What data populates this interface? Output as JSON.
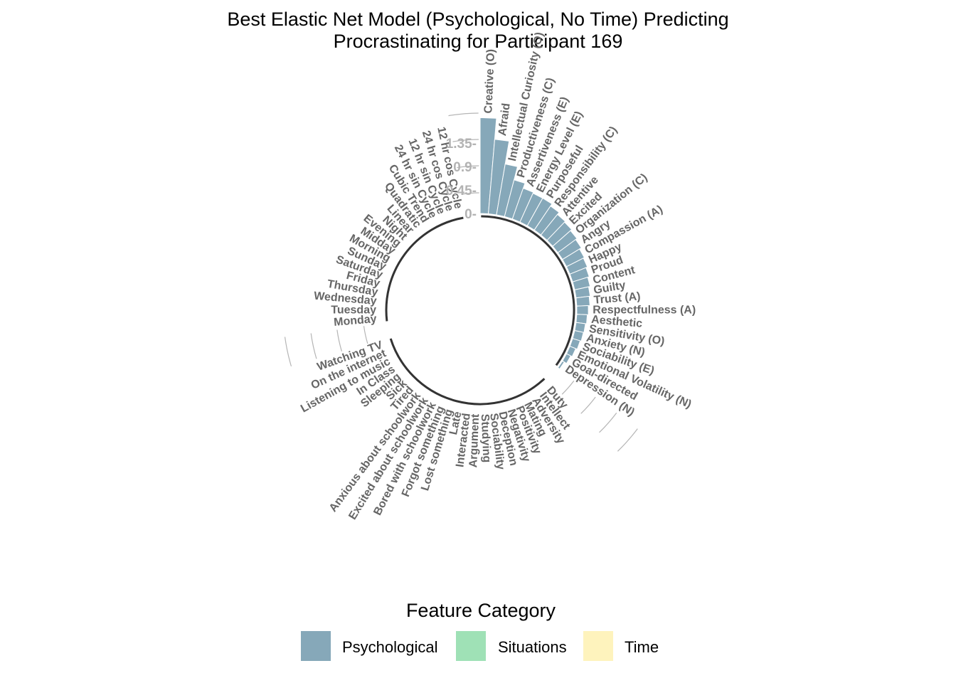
{
  "chart_data": {
    "type": "bar",
    "polar": true,
    "title_line1": "Best Elastic Net Model (Psychological, No Time) Predicting",
    "title_line2": "Procrastinating for Participant 169",
    "y_ticks": [
      "0-",
      "0.45-",
      "0.9-",
      "1.35-"
    ],
    "y_tick_values": [
      0,
      0.45,
      0.9,
      1.35
    ],
    "ylim": [
      0,
      1.8
    ],
    "legend": {
      "title": "Feature Category",
      "position": "bottom",
      "items": [
        {
          "label": "Psychological",
          "color": "#86a8b9"
        },
        {
          "label": "Situations",
          "color": "#9fe1b6"
        },
        {
          "label": "Time",
          "color": "#fef3bd"
        }
      ]
    },
    "groups": [
      {
        "name": "Psychological",
        "color": "#86a8b9",
        "bracket": true,
        "features": [
          {
            "label": "Creative\n(O)",
            "value": 1.82
          },
          {
            "label": "Afraid",
            "value": 1.42
          },
          {
            "label": "Intellectual\nCuriosity (O)",
            "value": 0.98
          },
          {
            "label": "Productiveness (C)",
            "value": 0.72
          },
          {
            "label": "Assertiveness (E)",
            "value": 0.62
          },
          {
            "label": "Energy Level (E)",
            "value": 0.6
          },
          {
            "label": "Purposeful",
            "value": 0.6
          },
          {
            "label": "Responsibility (C)",
            "value": 0.55
          },
          {
            "label": "Attentive",
            "value": 0.5
          },
          {
            "label": "Excited",
            "value": 0.48
          },
          {
            "label": "Organization (C)",
            "value": 0.45
          },
          {
            "label": "Angry",
            "value": 0.42
          },
          {
            "label": "Compassion (A)",
            "value": 0.38
          },
          {
            "label": "Happy",
            "value": 0.36
          },
          {
            "label": "Proud",
            "value": 0.33
          },
          {
            "label": "Content",
            "value": 0.3
          },
          {
            "label": "Guilty",
            "value": 0.27
          },
          {
            "label": "Trust (A)",
            "value": 0.25
          },
          {
            "label": "Respectfulness (A)",
            "value": 0.22
          },
          {
            "label": "Aesthetic",
            "value": 0.2
          },
          {
            "label": "Sensitivity (O)",
            "value": 0.18
          },
          {
            "label": "Anxiety (N)",
            "value": 0.17
          },
          {
            "label": "Sociability (E)",
            "value": 0.15
          },
          {
            "label": "Emotional Volatility\n(N)",
            "value": 0.12
          },
          {
            "label": "Goal-directed",
            "value": 0.09
          },
          {
            "label": "Depression (N)",
            "value": 0.04
          }
        ]
      },
      {
        "name": "Situations",
        "color": "#9fe1b6",
        "bracket": true,
        "features": [
          {
            "label": "Duty",
            "value": 0
          },
          {
            "label": "Intellect",
            "value": 0
          },
          {
            "label": "Adversity",
            "value": 0
          },
          {
            "label": "Mating",
            "value": 0
          },
          {
            "label": "Positivity",
            "value": 0
          },
          {
            "label": "Negativity",
            "value": 0
          },
          {
            "label": "Deception",
            "value": 0
          },
          {
            "label": "Sociability",
            "value": 0
          },
          {
            "label": "Studying",
            "value": 0
          },
          {
            "label": "Argument",
            "value": 0
          },
          {
            "label": "Interacted",
            "value": 0
          },
          {
            "label": "Late",
            "value": 0
          },
          {
            "label": "Lost something",
            "value": 0
          },
          {
            "label": "Forgot something",
            "value": 0
          },
          {
            "label": "Bored with schoolwork",
            "value": 0
          },
          {
            "label": "Excited about schoolwork",
            "value": 0
          },
          {
            "label": "Anxious about schoolwork",
            "value": 0
          },
          {
            "label": "Tired",
            "value": 0
          },
          {
            "label": "Sick",
            "value": 0
          },
          {
            "label": "Sleeping",
            "value": 0
          },
          {
            "label": "In Class",
            "value": 0
          },
          {
            "label": "Listening to music",
            "value": 0
          },
          {
            "label": "On the internet",
            "value": 0
          },
          {
            "label": "Watching TV",
            "value": 0
          }
        ]
      },
      {
        "name": "Time",
        "color": "#fef3bd",
        "bracket": true,
        "features": [
          {
            "label": "Monday",
            "value": 0
          },
          {
            "label": "Tuesday",
            "value": 0
          },
          {
            "label": "Wednesday",
            "value": 0
          },
          {
            "label": "Thursday",
            "value": 0
          },
          {
            "label": "Friday",
            "value": 0
          },
          {
            "label": "Saturday",
            "value": 0
          },
          {
            "label": "Sunday",
            "value": 0
          },
          {
            "label": "Morning",
            "value": 0
          },
          {
            "label": "Midday",
            "value": 0
          },
          {
            "label": "Evening",
            "value": 0
          },
          {
            "label": "Night",
            "value": 0
          },
          {
            "label": "Linear",
            "value": 0
          },
          {
            "label": "Quadratic",
            "value": 0
          },
          {
            "label": "Cubic Trend",
            "value": 0
          },
          {
            "label": "24 hr sin Cycle",
            "value": 0
          },
          {
            "label": "12 hr sin Cycle",
            "value": 0
          },
          {
            "label": "24 hr cos Cycle",
            "value": 0
          },
          {
            "label": "12 hr cos Cycle",
            "value": 0
          }
        ]
      }
    ]
  }
}
